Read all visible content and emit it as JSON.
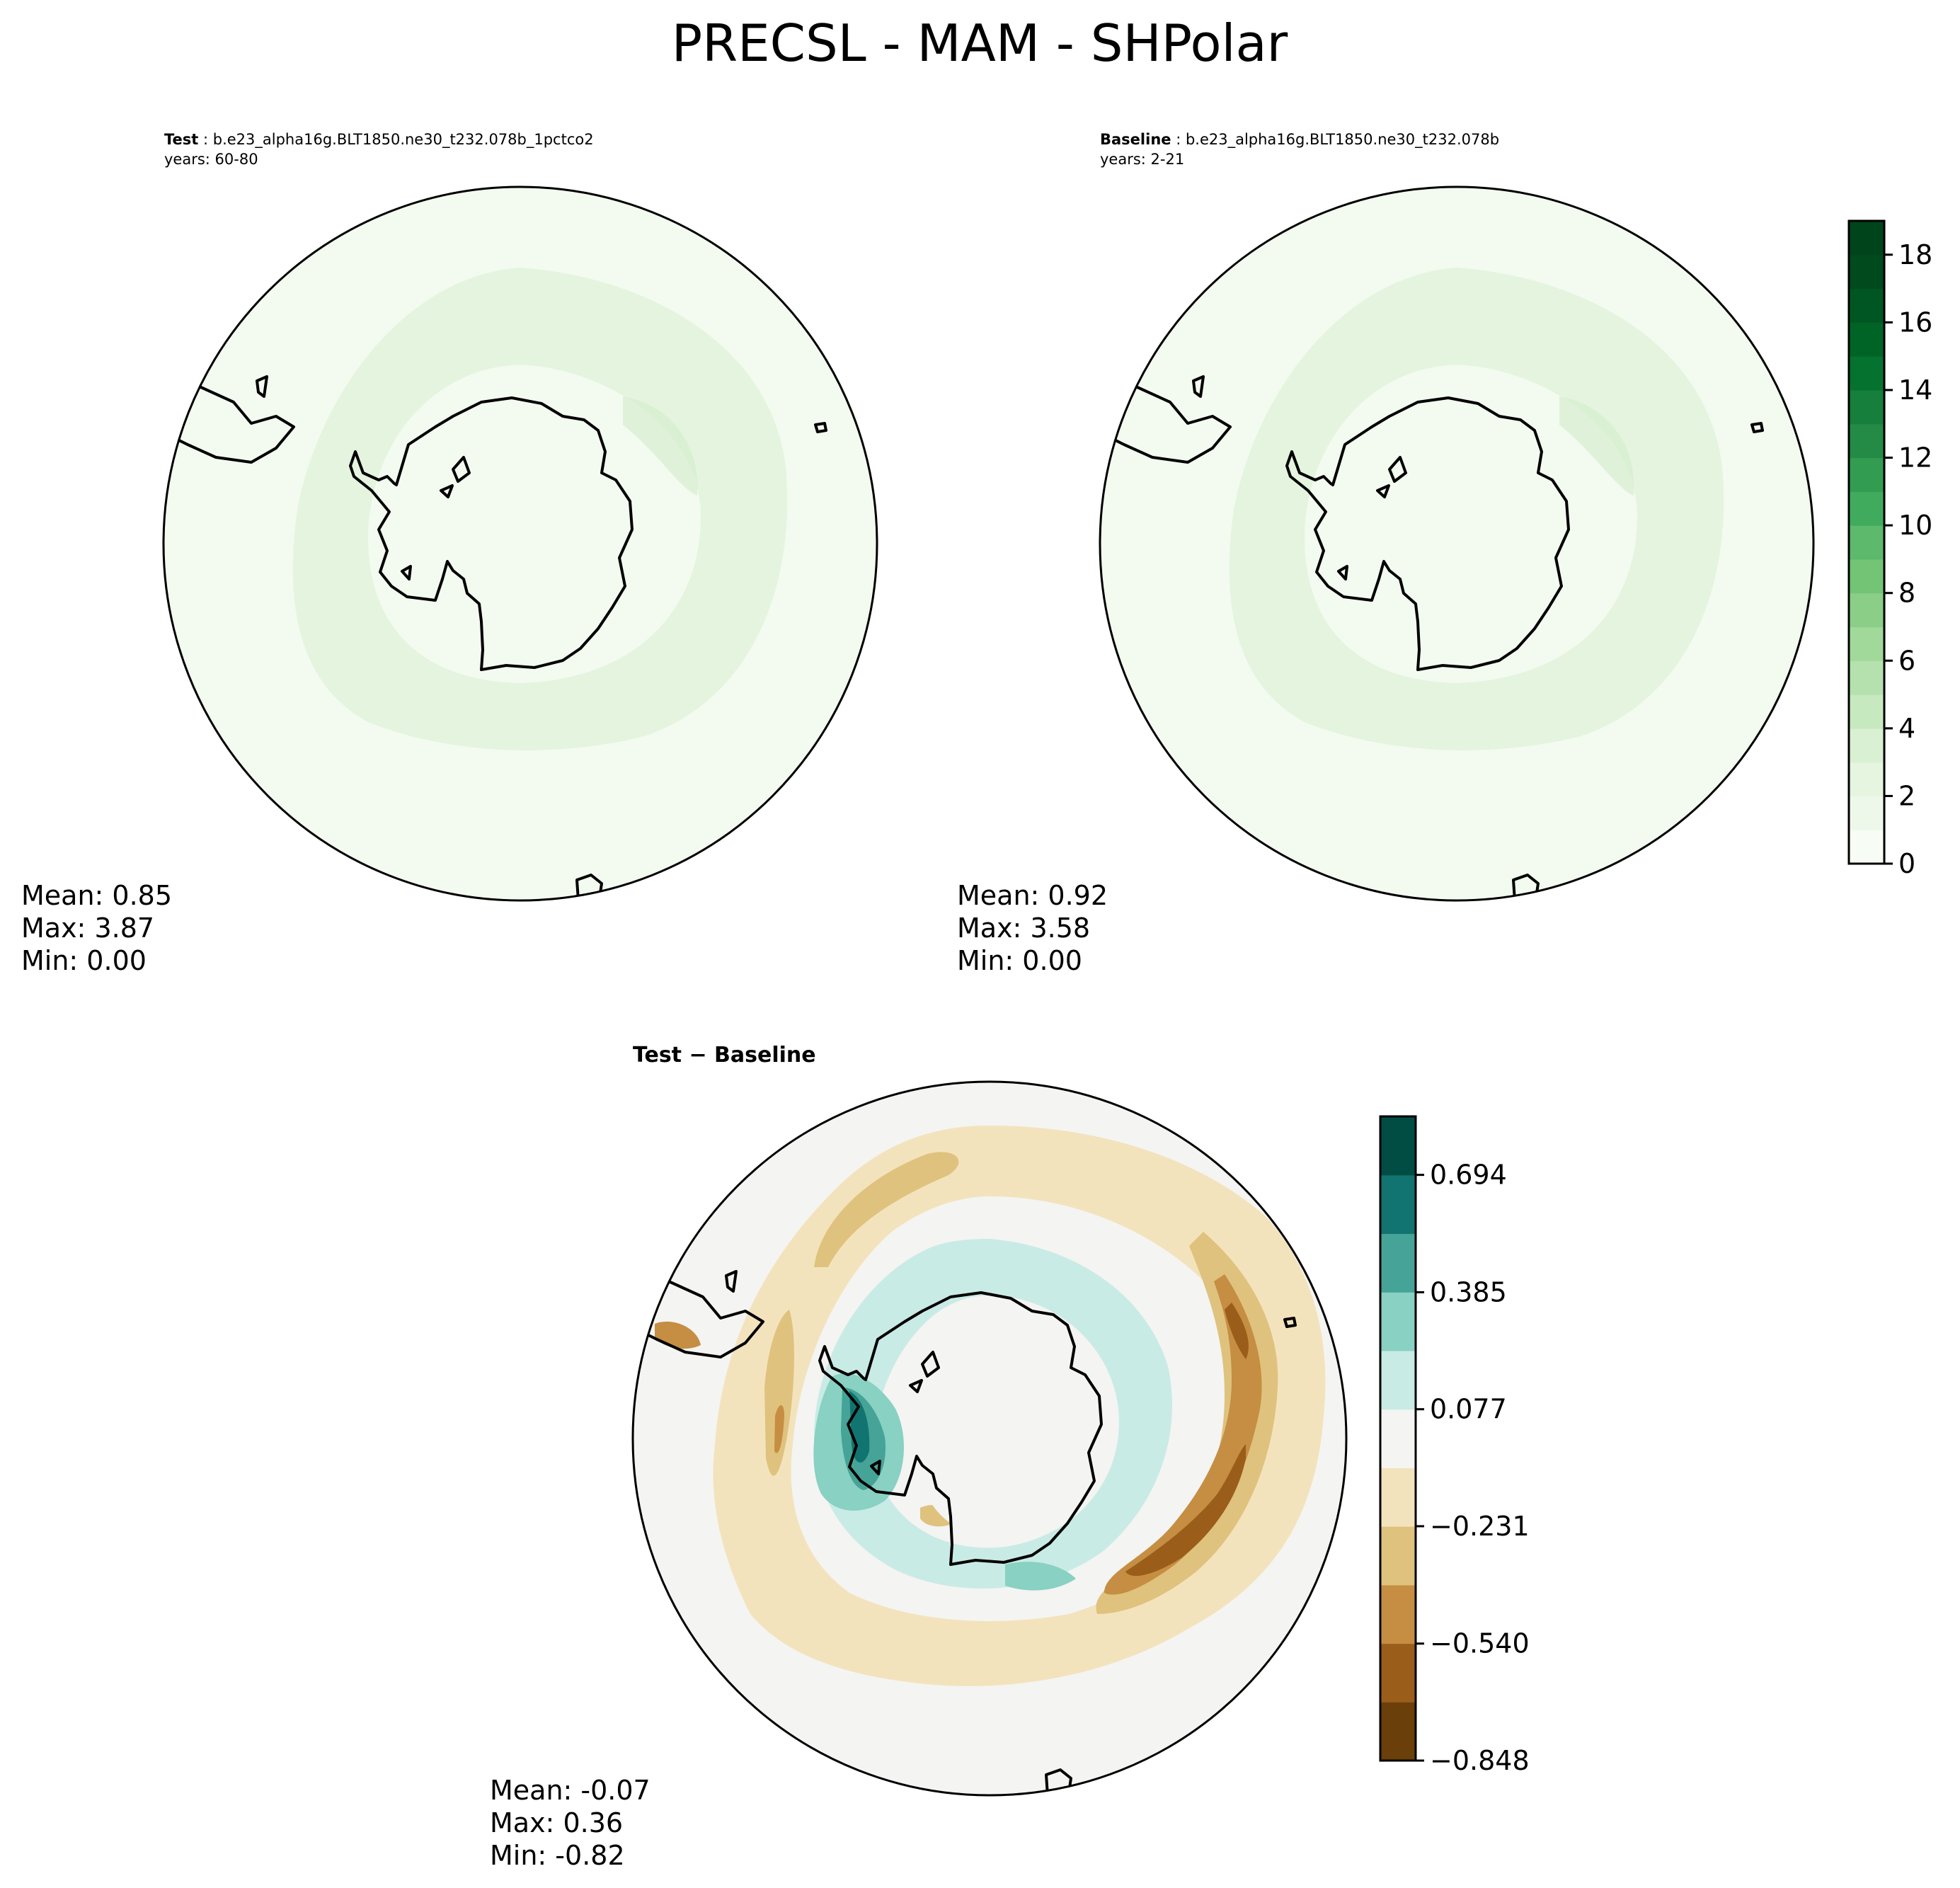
{
  "chart_data": {
    "type": "contour",
    "title": "PRECSL - MAM - SHPolar",
    "projection": "south-polar-stereographic",
    "panels": [
      {
        "name": "test",
        "label_bold": "Test",
        "label_rest": " : b.e23_alpha16g.BLT1850.ne30_t232.078b_1pctco2",
        "years": "years: 60-80",
        "stats": {
          "mean": "Mean:  0.85",
          "max": "Max:  3.87",
          "min": "Min:  0.00"
        },
        "field_values": {
          "mean": 0.85,
          "max": 3.87,
          "min": 0.0
        }
      },
      {
        "name": "baseline",
        "label_bold": "Baseline",
        "label_rest": " : b.e23_alpha16g.BLT1850.ne30_t232.078b",
        "years": "years: 2-21",
        "stats": {
          "mean": "Mean:  0.92",
          "max": "Max:  3.58",
          "min": "Min:  0.00"
        },
        "field_values": {
          "mean": 0.92,
          "max": 3.58,
          "min": 0.0
        }
      },
      {
        "name": "difference",
        "label": "Test − Baseline",
        "stats": {
          "mean": "Mean: -0.07",
          "max": "Max:  0.36",
          "min": "Min: -0.82"
        },
        "field_values": {
          "mean": -0.07,
          "max": 0.36,
          "min": -0.82
        }
      }
    ],
    "colorbars": [
      {
        "name": "main",
        "colormap": "Greens",
        "range": [
          0,
          19
        ],
        "ticks": [
          "0",
          "2",
          "4",
          "6",
          "8",
          "10",
          "12",
          "14",
          "16",
          "18"
        ],
        "tick_values": [
          0,
          2,
          4,
          6,
          8,
          10,
          12,
          14,
          16,
          18
        ],
        "colors": [
          "#f7fcf5",
          "#eef8ea",
          "#e5f5e0",
          "#d9f0d3",
          "#c7e9c0",
          "#b5e1ae",
          "#a1d99b",
          "#8ace88",
          "#74c476",
          "#5db96b",
          "#41ab5d",
          "#329c51",
          "#238b45",
          "#157f3b",
          "#067230",
          "#006427",
          "#005622",
          "#004a1d",
          "#00441b"
        ]
      },
      {
        "name": "diff",
        "colormap": "BrBG",
        "range": [
          -0.848,
          0.848
        ],
        "ticks": [
          "−0.848",
          "−0.540",
          "−0.231",
          "0.077",
          "0.385",
          "0.694"
        ],
        "tick_values": [
          -0.848,
          -0.54,
          -0.231,
          0.077,
          0.385,
          0.694
        ],
        "colors": [
          "#6b3f0a",
          "#9a5d1a",
          "#c58e42",
          "#dfc27d",
          "#f3e3bd",
          "#f4f4f2",
          "#c9ebe5",
          "#88d1c3",
          "#46a397",
          "#127470",
          "#014d44"
        ]
      }
    ]
  }
}
